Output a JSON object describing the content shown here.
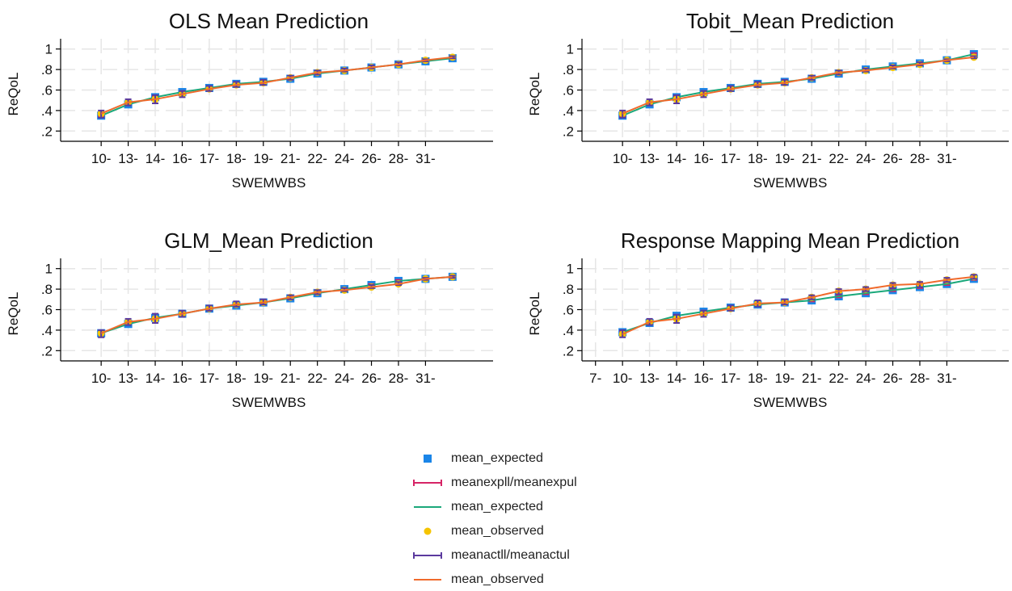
{
  "colors": {
    "expected_marker": "#1a85e8",
    "expected_ci": "#d62466",
    "expected_line": "#1aa87a",
    "observed_marker": "#f5c400",
    "observed_ci": "#5b3a9e",
    "observed_line": "#f06a2c",
    "grid": "#e6e6e6",
    "axis": "#000000"
  },
  "legend": [
    {
      "label": "mean_expected",
      "symbol": "square",
      "color_key": "expected_marker"
    },
    {
      "label": "meanexpll/meanexpul",
      "symbol": "capped-line",
      "color_key": "expected_ci"
    },
    {
      "label": "mean_expected",
      "symbol": "line",
      "color_key": "expected_line"
    },
    {
      "label": "mean_observed",
      "symbol": "dot",
      "color_key": "observed_marker"
    },
    {
      "label": "meanactll/meanactul",
      "symbol": "capped-line",
      "color_key": "observed_ci"
    },
    {
      "label": "mean_observed",
      "symbol": "line",
      "color_key": "observed_line"
    }
  ],
  "chart_data": [
    {
      "type": "line",
      "title": "OLS Mean Prediction",
      "xlabel": "SWEMWBS",
      "ylabel": "ReQoL",
      "ylim": [
        0.1,
        1.1
      ],
      "yticks": [
        "1",
        ".8",
        ".6",
        ".4",
        ".2"
      ],
      "ytick_values": [
        1,
        0.8,
        0.6,
        0.4,
        0.2
      ],
      "xlim": [
        0.5,
        16.5
      ],
      "tick_labels": [
        "10-",
        "13-",
        "14-",
        "16-",
        "17-",
        "18-",
        "19-",
        "21-",
        "22-",
        "24-",
        "26-",
        "28-",
        "31-"
      ],
      "tick_positions": [
        2,
        3,
        4,
        5,
        6,
        7,
        8,
        9,
        10,
        11,
        12,
        13,
        14
      ],
      "grid": true,
      "x": [
        2,
        3,
        4,
        5,
        6,
        7,
        8,
        9,
        10,
        11,
        12,
        13,
        14,
        15
      ],
      "series": [
        {
          "name": "mean_expected",
          "values": [
            0.35,
            0.46,
            0.53,
            0.58,
            0.62,
            0.66,
            0.68,
            0.71,
            0.76,
            0.79,
            0.82,
            0.85,
            0.88,
            0.91
          ]
        },
        {
          "name": "meanexpll/meanexpul",
          "low": [
            0.34,
            0.45,
            0.52,
            0.57,
            0.61,
            0.65,
            0.67,
            0.7,
            0.75,
            0.78,
            0.81,
            0.84,
            0.87,
            0.9
          ],
          "high": [
            0.36,
            0.47,
            0.54,
            0.59,
            0.63,
            0.67,
            0.69,
            0.72,
            0.77,
            0.8,
            0.83,
            0.86,
            0.89,
            0.92
          ]
        },
        {
          "name": "mean_observed",
          "values": [
            0.37,
            0.48,
            0.51,
            0.56,
            0.61,
            0.65,
            0.67,
            0.72,
            0.77,
            0.79,
            0.82,
            0.85,
            0.89,
            0.92
          ]
        },
        {
          "name": "meanactll/meanactul",
          "low": [
            0.33,
            0.45,
            0.47,
            0.53,
            0.59,
            0.63,
            0.65,
            0.7,
            0.75,
            0.78,
            0.81,
            0.84,
            0.88,
            0.91
          ],
          "high": [
            0.4,
            0.51,
            0.55,
            0.59,
            0.64,
            0.68,
            0.7,
            0.74,
            0.79,
            0.81,
            0.84,
            0.87,
            0.9,
            0.93
          ]
        }
      ]
    },
    {
      "type": "line",
      "title": "Tobit_Mean Prediction",
      "xlabel": "SWEMWBS",
      "ylabel": "ReQoL",
      "ylim": [
        0.1,
        1.1
      ],
      "yticks": [
        "1",
        ".8",
        ".6",
        ".4",
        ".2"
      ],
      "ytick_values": [
        1,
        0.8,
        0.6,
        0.4,
        0.2
      ],
      "xlim": [
        0.5,
        16.5
      ],
      "tick_labels": [
        "10-",
        "13-",
        "14-",
        "16-",
        "17-",
        "18-",
        "19-",
        "21-",
        "22-",
        "24-",
        "26-",
        "28-",
        "31-"
      ],
      "tick_positions": [
        2,
        3,
        4,
        5,
        6,
        7,
        8,
        9,
        10,
        11,
        12,
        13,
        14
      ],
      "grid": true,
      "x": [
        2,
        3,
        4,
        5,
        6,
        7,
        8,
        9,
        10,
        11,
        12,
        13,
        14,
        15
      ],
      "series": [
        {
          "name": "mean_expected",
          "values": [
            0.35,
            0.46,
            0.53,
            0.58,
            0.62,
            0.66,
            0.68,
            0.71,
            0.76,
            0.8,
            0.83,
            0.86,
            0.89,
            0.95
          ]
        },
        {
          "name": "meanexpll/meanexpul",
          "low": [
            0.34,
            0.45,
            0.52,
            0.57,
            0.61,
            0.65,
            0.67,
            0.7,
            0.75,
            0.79,
            0.82,
            0.85,
            0.88,
            0.94
          ],
          "high": [
            0.36,
            0.47,
            0.54,
            0.59,
            0.63,
            0.67,
            0.69,
            0.72,
            0.77,
            0.81,
            0.84,
            0.87,
            0.9,
            0.96
          ]
        },
        {
          "name": "mean_observed",
          "values": [
            0.37,
            0.48,
            0.51,
            0.56,
            0.61,
            0.65,
            0.67,
            0.72,
            0.77,
            0.79,
            0.82,
            0.85,
            0.89,
            0.92
          ]
        },
        {
          "name": "meanactll/meanactul",
          "low": [
            0.33,
            0.45,
            0.47,
            0.53,
            0.59,
            0.63,
            0.65,
            0.7,
            0.75,
            0.78,
            0.81,
            0.84,
            0.88,
            0.91
          ],
          "high": [
            0.4,
            0.51,
            0.55,
            0.59,
            0.64,
            0.68,
            0.7,
            0.74,
            0.79,
            0.81,
            0.84,
            0.87,
            0.9,
            0.93
          ]
        }
      ]
    },
    {
      "type": "line",
      "title": "GLM_Mean Prediction",
      "xlabel": "SWEMWBS",
      "ylabel": "ReQoL",
      "ylim": [
        0.1,
        1.1
      ],
      "yticks": [
        "1",
        ".8",
        ".6",
        ".4",
        ".2"
      ],
      "ytick_values": [
        1,
        0.8,
        0.6,
        0.4,
        0.2
      ],
      "xlim": [
        0.5,
        16.5
      ],
      "tick_labels": [
        "10-",
        "13-",
        "14-",
        "16-",
        "17-",
        "18-",
        "19-",
        "21-",
        "22-",
        "24-",
        "26-",
        "28-",
        "31-"
      ],
      "tick_positions": [
        2,
        3,
        4,
        5,
        6,
        7,
        8,
        9,
        10,
        11,
        12,
        13,
        14
      ],
      "grid": true,
      "x": [
        2,
        3,
        4,
        5,
        6,
        7,
        8,
        9,
        10,
        11,
        12,
        13,
        14,
        15
      ],
      "series": [
        {
          "name": "mean_expected",
          "values": [
            0.37,
            0.46,
            0.52,
            0.56,
            0.61,
            0.64,
            0.67,
            0.71,
            0.76,
            0.8,
            0.84,
            0.88,
            0.9,
            0.92
          ]
        },
        {
          "name": "meanexpll/meanexpul",
          "low": [
            0.36,
            0.45,
            0.51,
            0.55,
            0.6,
            0.63,
            0.66,
            0.7,
            0.75,
            0.79,
            0.83,
            0.87,
            0.89,
            0.91
          ],
          "high": [
            0.38,
            0.47,
            0.53,
            0.57,
            0.62,
            0.65,
            0.68,
            0.72,
            0.77,
            0.81,
            0.85,
            0.89,
            0.91,
            0.93
          ]
        },
        {
          "name": "mean_observed",
          "values": [
            0.37,
            0.48,
            0.51,
            0.56,
            0.61,
            0.65,
            0.67,
            0.72,
            0.77,
            0.79,
            0.82,
            0.85,
            0.9,
            0.92
          ]
        },
        {
          "name": "meanactll/meanactul",
          "low": [
            0.33,
            0.45,
            0.47,
            0.53,
            0.59,
            0.63,
            0.65,
            0.7,
            0.75,
            0.78,
            0.81,
            0.84,
            0.89,
            0.91
          ],
          "high": [
            0.4,
            0.51,
            0.56,
            0.59,
            0.64,
            0.68,
            0.7,
            0.74,
            0.79,
            0.81,
            0.84,
            0.87,
            0.91,
            0.93
          ]
        }
      ]
    },
    {
      "type": "line",
      "title": "Response Mapping Mean Prediction",
      "xlabel": "SWEMWBS",
      "ylabel": "ReQoL",
      "ylim": [
        0.1,
        1.1
      ],
      "yticks": [
        "1",
        ".8",
        ".6",
        ".4",
        ".2"
      ],
      "ytick_values": [
        1,
        0.8,
        0.6,
        0.4,
        0.2
      ],
      "xlim": [
        0.5,
        16.5
      ],
      "tick_labels": [
        "7-",
        "10-",
        "13-",
        "14-",
        "16-",
        "17-",
        "18-",
        "19-",
        "21-",
        "22-",
        "24-",
        "26-",
        "28-",
        "31-"
      ],
      "tick_positions": [
        1,
        2,
        3,
        4,
        5,
        6,
        7,
        8,
        9,
        10,
        11,
        12,
        13,
        14
      ],
      "grid": true,
      "x": [
        2,
        3,
        4,
        5,
        6,
        7,
        8,
        9,
        10,
        11,
        12,
        13,
        14,
        15
      ],
      "series": [
        {
          "name": "mean_expected",
          "values": [
            0.38,
            0.47,
            0.54,
            0.58,
            0.62,
            0.65,
            0.67,
            0.69,
            0.73,
            0.76,
            0.79,
            0.82,
            0.85,
            0.9
          ]
        },
        {
          "name": "meanexpll/meanexpul",
          "low": [
            0.37,
            0.46,
            0.53,
            0.57,
            0.61,
            0.64,
            0.66,
            0.68,
            0.72,
            0.75,
            0.78,
            0.81,
            0.84,
            0.89
          ],
          "high": [
            0.39,
            0.48,
            0.55,
            0.59,
            0.63,
            0.66,
            0.68,
            0.7,
            0.74,
            0.77,
            0.8,
            0.83,
            0.86,
            0.91
          ]
        },
        {
          "name": "mean_observed",
          "values": [
            0.36,
            0.48,
            0.51,
            0.56,
            0.61,
            0.66,
            0.67,
            0.72,
            0.78,
            0.8,
            0.84,
            0.85,
            0.89,
            0.92
          ]
        },
        {
          "name": "meanactll/meanactul",
          "low": [
            0.33,
            0.45,
            0.47,
            0.53,
            0.59,
            0.63,
            0.65,
            0.7,
            0.75,
            0.78,
            0.81,
            0.82,
            0.87,
            0.9
          ],
          "high": [
            0.4,
            0.51,
            0.55,
            0.59,
            0.64,
            0.69,
            0.7,
            0.74,
            0.8,
            0.82,
            0.86,
            0.87,
            0.91,
            0.94
          ]
        }
      ]
    }
  ]
}
